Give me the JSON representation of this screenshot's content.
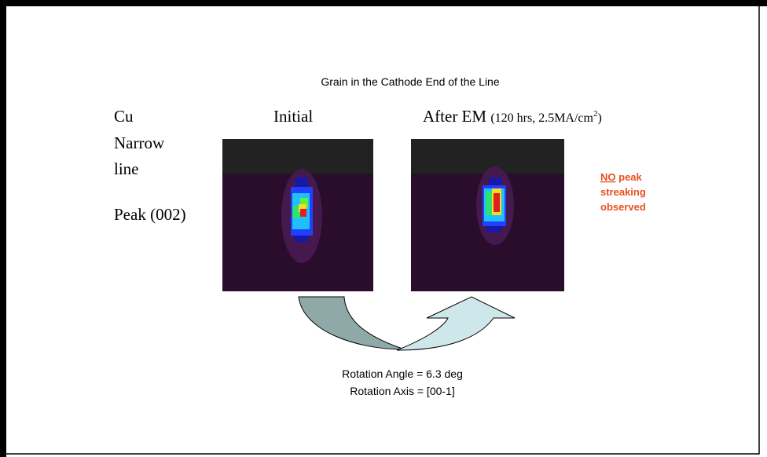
{
  "slide": {
    "title": "Grain in the Cathode End of the Line",
    "sample": [
      "Cu",
      "Narrow",
      "line"
    ],
    "peak": "Peak (002)",
    "panels": [
      {
        "label": "Initial"
      },
      {
        "label": "After EM",
        "note": "(120 hrs, 2.5MA/cm",
        "note_sup": "2",
        "note_end": ")"
      }
    ],
    "callout": {
      "emphasis": "NO",
      "text": [
        "peak",
        "streaking",
        "observed"
      ]
    },
    "rotation": [
      "Rotation Angle = 6.3 deg",
      "Rotation Axis = [00-1]"
    ]
  }
}
